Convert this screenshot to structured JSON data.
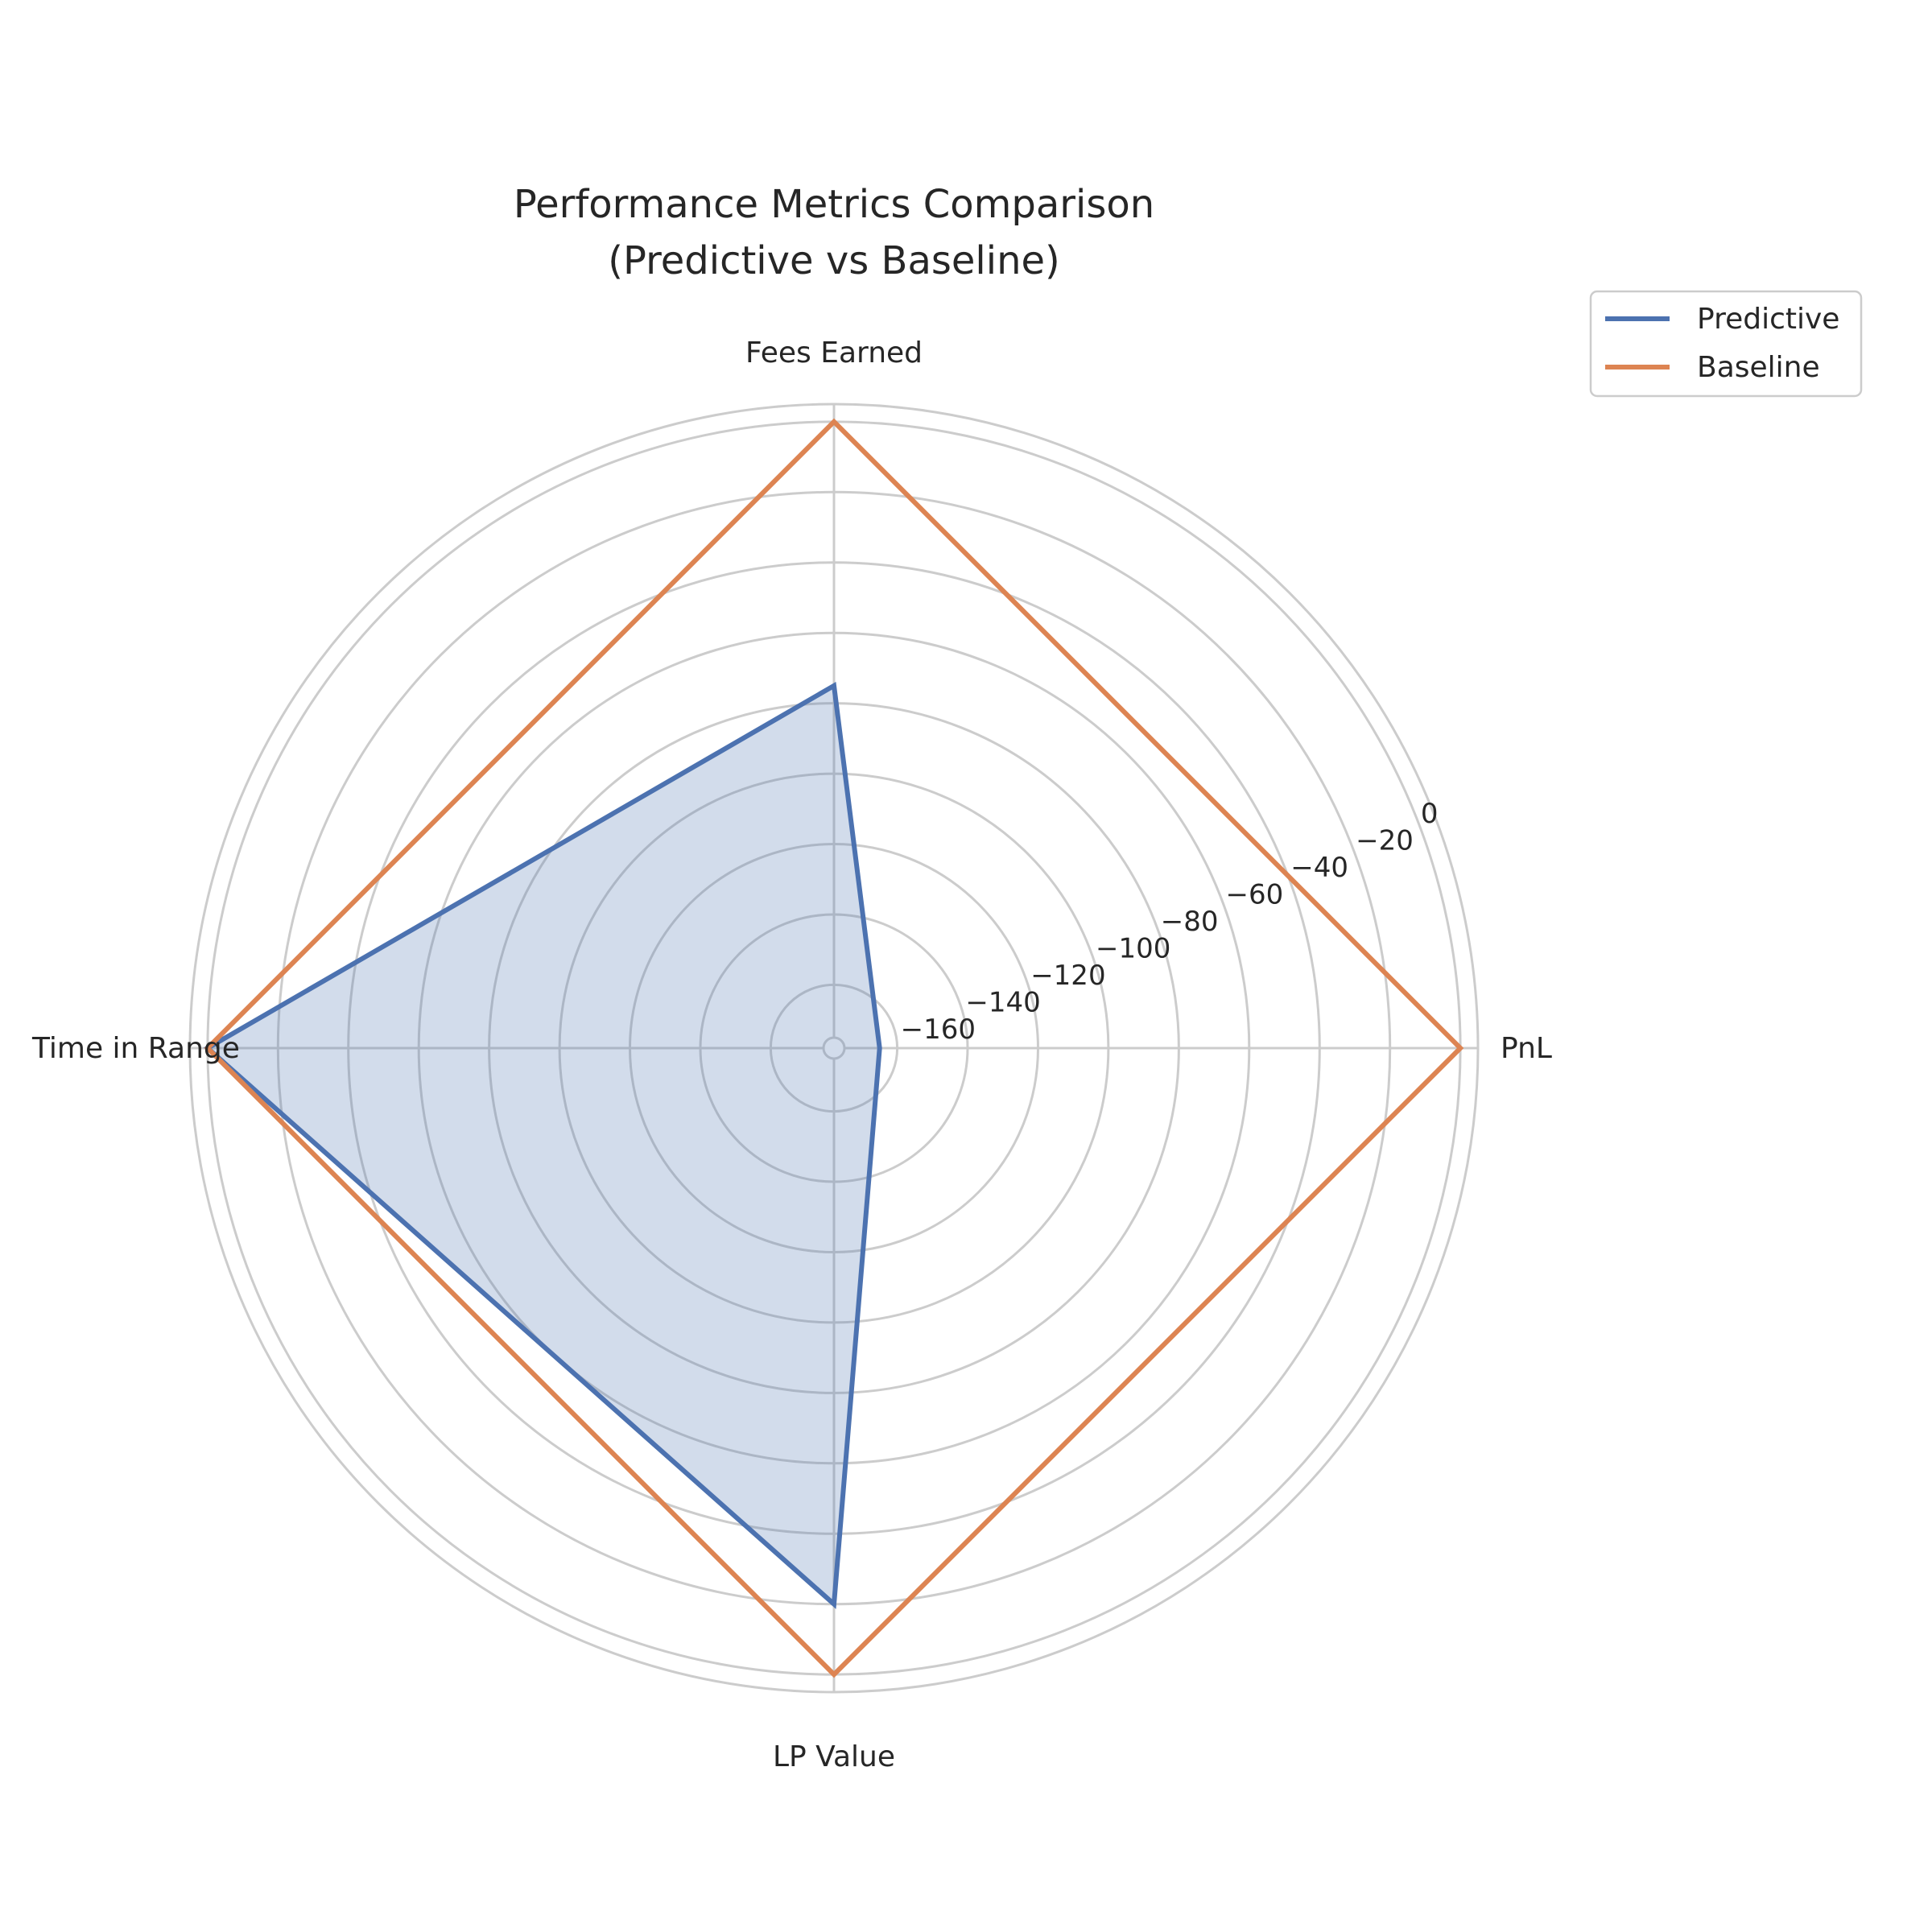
{
  "chart_data": {
    "type": "radar",
    "title": "Performance Metrics Comparison\n(Predictive vs Baseline)",
    "categories": [
      "PnL",
      "Fees Earned",
      "Time in Range",
      "LP Value"
    ],
    "series": [
      {
        "name": "Predictive",
        "values": [
          -165,
          -75,
          0,
          -20
        ],
        "color": "#4c72b0",
        "filled": true
      },
      {
        "name": "Baseline",
        "values": [
          0,
          0,
          0,
          0
        ],
        "color": "#dd8452",
        "filled": false
      }
    ],
    "rlim": [
      -175,
      5
    ],
    "rticks": [
      -160,
      -140,
      -120,
      -100,
      -80,
      -60,
      -40,
      -20,
      0
    ],
    "rtick_labels": [
      "−160",
      "−140",
      "−120",
      "−100",
      "−80",
      "−60",
      "−40",
      "−20",
      "0"
    ],
    "grid": true,
    "legend_position": "upper-right",
    "colors": {
      "grid": "#cccccc",
      "text": "#262626"
    }
  }
}
